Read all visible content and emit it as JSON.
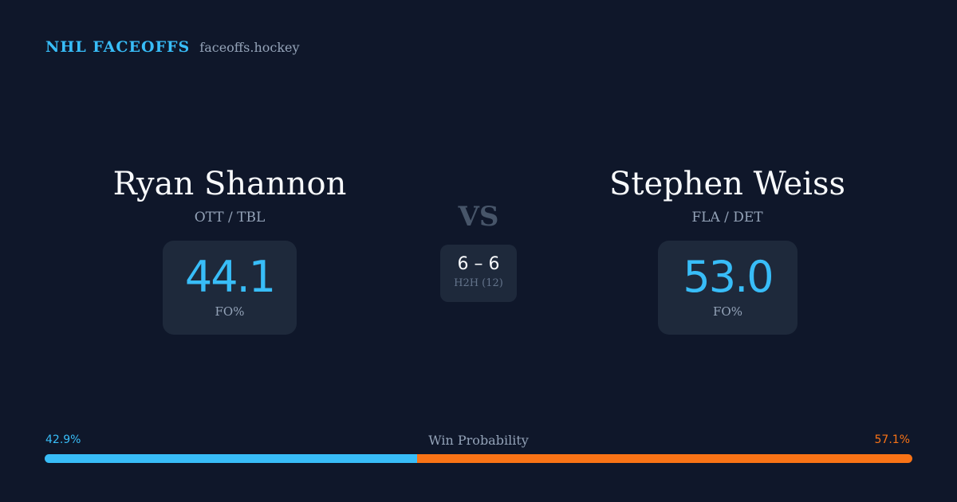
{
  "brand": {
    "title": "NHL FACEOFFS",
    "domain": "faceoffs.hockey"
  },
  "players": {
    "left": {
      "name": "Ryan Shannon",
      "teams": "OTT / TBL",
      "fo_value": "44.1",
      "fo_label": "FO%"
    },
    "right": {
      "name": "Stephen Weiss",
      "teams": "FLA / DET",
      "fo_value": "53.0",
      "fo_label": "FO%"
    }
  },
  "matchup": {
    "vs_label": "VS",
    "h2h_score": "6 – 6",
    "h2h_label": "H2H (12)"
  },
  "win_probability": {
    "label": "Win Probability",
    "left_pct_text": "42.9%",
    "right_pct_text": "57.1%",
    "left_fraction": 0.429,
    "right_fraction": 0.571,
    "left_color": "#38bdf8",
    "right_color": "#f97316"
  },
  "colors": {
    "background": "#0f172a",
    "card": "#1e293b",
    "accent": "#38bdf8"
  }
}
